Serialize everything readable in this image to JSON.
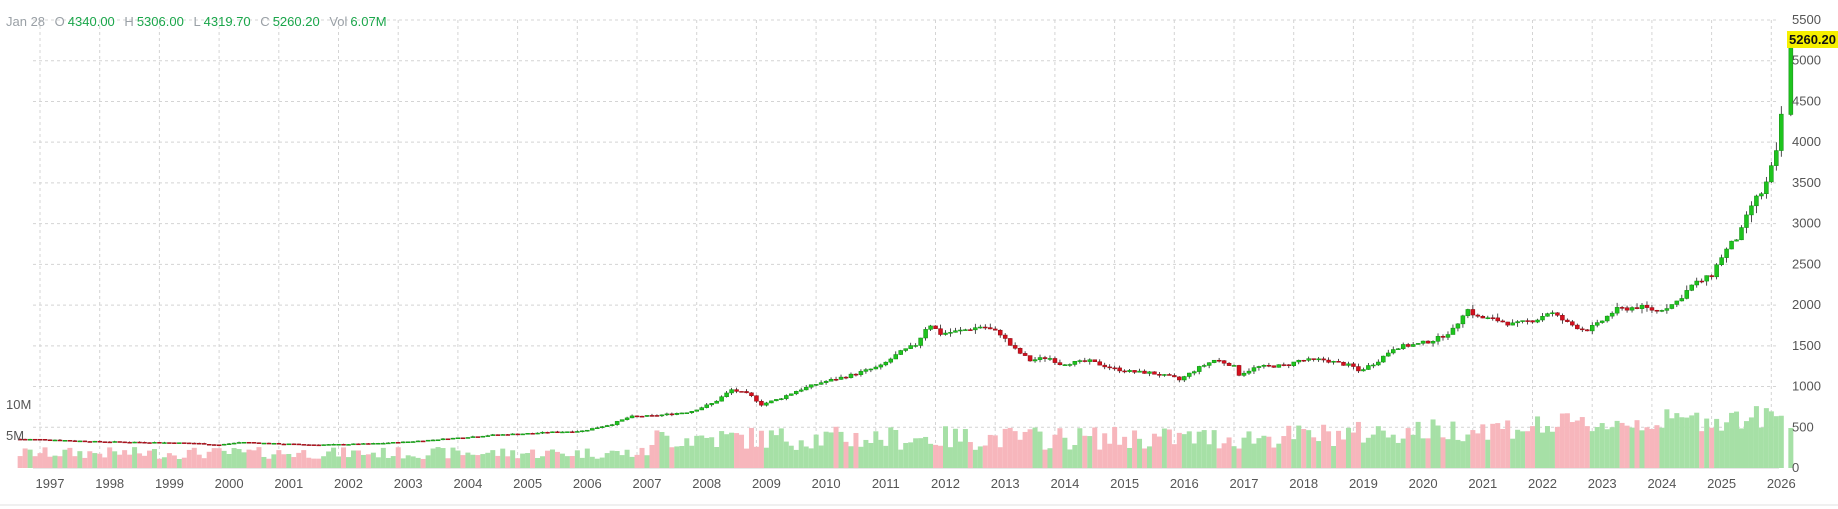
{
  "header": {
    "date": "Jan 28",
    "open_label": "O",
    "open": "4340.00",
    "high_label": "H",
    "high": "5306.00",
    "low_label": "L",
    "low": "4319.70",
    "close_label": "C",
    "close": "5260.20",
    "vol_label": "Vol",
    "vol": "6.07M"
  },
  "last_price": "5260.20",
  "colors": {
    "up": "#1ec41e",
    "down": "#d4101e",
    "vol_up": "#a6e0a6",
    "vol_down": "#f7b6bc",
    "grid": "#d4d4d4"
  },
  "chart_data": {
    "type": "candlestick",
    "y_axis": {
      "min": 0,
      "max": 5500,
      "ticks": [
        0,
        500,
        1000,
        1500,
        2000,
        2500,
        3000,
        3500,
        4000,
        4500,
        5000,
        5500
      ]
    },
    "volume_axis": {
      "ticks": [
        "5M",
        "10M"
      ],
      "tick_values": [
        5,
        10
      ]
    },
    "x_axis": {
      "ticks": [
        "1997",
        "1998",
        "1999",
        "2000",
        "2001",
        "2002",
        "2003",
        "2004",
        "2005",
        "2006",
        "2007",
        "2008",
        "2009",
        "2010",
        "2011",
        "2012",
        "2013",
        "2014",
        "2015",
        "2016",
        "2017",
        "2018",
        "2019",
        "2020",
        "2021",
        "2022",
        "2023",
        "2024",
        "2025",
        "2026"
      ]
    },
    "grid": true,
    "price_path": [
      [
        1996.5,
        355
      ],
      [
        1997.0,
        350
      ],
      [
        1997.8,
        325
      ],
      [
        1998.5,
        318
      ],
      [
        1999.0,
        312
      ],
      [
        1999.5,
        305
      ],
      [
        1999.9,
        282
      ],
      [
        2000.3,
        318
      ],
      [
        2000.8,
        300
      ],
      [
        2001.5,
        285
      ],
      [
        2002.0,
        290
      ],
      [
        2002.5,
        300
      ],
      [
        2003.0,
        318
      ],
      [
        2003.5,
        345
      ],
      [
        2004.0,
        375
      ],
      [
        2004.5,
        405
      ],
      [
        2005.0,
        420
      ],
      [
        2005.5,
        440
      ],
      [
        2006.0,
        455
      ],
      [
        2006.5,
        540
      ],
      [
        2006.8,
        630
      ],
      [
        2007.2,
        640
      ],
      [
        2007.8,
        690
      ],
      [
        2008.2,
        800
      ],
      [
        2008.5,
        960
      ],
      [
        2008.8,
        900
      ],
      [
        2009.0,
        780
      ],
      [
        2009.3,
        850
      ],
      [
        2009.6,
        950
      ],
      [
        2010.0,
        1050
      ],
      [
        2010.5,
        1140
      ],
      [
        2011.0,
        1250
      ],
      [
        2011.3,
        1410
      ],
      [
        2011.6,
        1520
      ],
      [
        2011.8,
        1780
      ],
      [
        2012.0,
        1650
      ],
      [
        2012.3,
        1680
      ],
      [
        2012.7,
        1740
      ],
      [
        2013.0,
        1650
      ],
      [
        2013.2,
        1480
      ],
      [
        2013.5,
        1320
      ],
      [
        2013.8,
        1360
      ],
      [
        2014.0,
        1280
      ],
      [
        2014.5,
        1310
      ],
      [
        2014.9,
        1220
      ],
      [
        2015.2,
        1180
      ],
      [
        2015.5,
        1170
      ],
      [
        2015.9,
        1110
      ],
      [
        2016.0,
        1080
      ],
      [
        2016.3,
        1220
      ],
      [
        2016.6,
        1330
      ],
      [
        2016.9,
        1260
      ],
      [
        2017.0,
        1150
      ],
      [
        2017.3,
        1240
      ],
      [
        2017.8,
        1260
      ],
      [
        2018.0,
        1320
      ],
      [
        2018.4,
        1330
      ],
      [
        2018.9,
        1250
      ],
      [
        2019.0,
        1190
      ],
      [
        2019.3,
        1300
      ],
      [
        2019.6,
        1480
      ],
      [
        2020.0,
        1520
      ],
      [
        2020.3,
        1580
      ],
      [
        2020.6,
        1700
      ],
      [
        2020.8,
        1960
      ],
      [
        2021.0,
        1850
      ],
      [
        2021.3,
        1820
      ],
      [
        2021.6,
        1760
      ],
      [
        2022.0,
        1830
      ],
      [
        2022.2,
        1920
      ],
      [
        2022.5,
        1780
      ],
      [
        2022.8,
        1690
      ],
      [
        2023.0,
        1760
      ],
      [
        2023.3,
        1940
      ],
      [
        2023.7,
        1980
      ],
      [
        2024.0,
        1930
      ],
      [
        2024.3,
        2020
      ],
      [
        2024.6,
        2250
      ],
      [
        2024.9,
        2350
      ],
      [
        2025.1,
        2620
      ],
      [
        2025.4,
        2880
      ],
      [
        2025.6,
        3250
      ],
      [
        2025.8,
        3420
      ],
      [
        2026.0,
        3850
      ],
      [
        2026.08,
        4340
      ]
    ],
    "last_candle": {
      "date": "Jan 28",
      "open": 4340.0,
      "high": 5306.0,
      "low": 4319.7,
      "close": 5260.2
    }
  }
}
